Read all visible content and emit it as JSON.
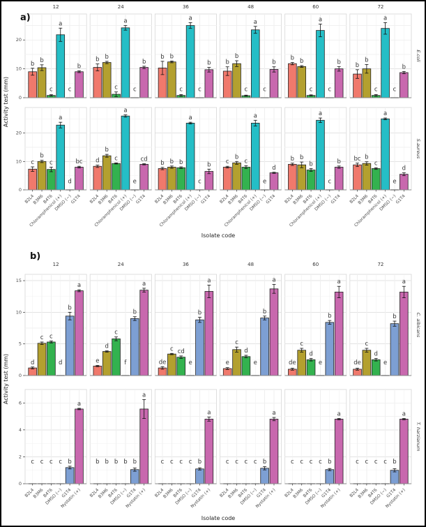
{
  "figure": {
    "panel_a_label": "a)",
    "panel_b_label": "b)"
  },
  "chart_data": [
    {
      "type": "bar",
      "panel": "a",
      "xlabel": "Isolate code",
      "ylabel": "Activity test (mm)",
      "legend": "none",
      "grid": "on",
      "col_facets": [
        "12",
        "24",
        "36",
        "48",
        "60",
        "72"
      ],
      "categories": [
        "B2L4",
        "B3M6",
        "B4T6",
        "Chloramphenicol (+)",
        "DMSO (−)",
        "G1T4"
      ],
      "bar_colors": [
        "#F0796C",
        "#B3A02F",
        "#33B24F",
        "#25BEC6",
        "#7D9FD3",
        "#C868AE"
      ],
      "rows": [
        {
          "facet_label": "E.coli",
          "ylim": [
            0,
            29
          ],
          "yticks": [
            0,
            10,
            20
          ],
          "facets": [
            {
              "col": "12",
              "values": [
                9.0,
                10.4,
                0.8,
                21.8,
                0,
                9.0
              ],
              "errors": [
                1.2,
                1.0,
                0.25,
                2.3,
                0,
                0.3
              ],
              "letters": [
                "b",
                "b",
                "c",
                "a",
                "c",
                "b"
              ]
            },
            {
              "col": "24",
              "values": [
                10.5,
                12.2,
                1.2,
                24.2,
                0,
                10.5
              ],
              "errors": [
                1.2,
                0.4,
                0.8,
                0.8,
                0,
                0.4
              ],
              "letters": [
                "b",
                "b",
                "c",
                "a",
                "c",
                "b"
              ]
            },
            {
              "col": "36",
              "values": [
                10.3,
                12.4,
                0.8,
                25.0,
                0,
                9.7
              ],
              "errors": [
                2.3,
                0.3,
                0.3,
                1.0,
                0,
                0.8
              ],
              "letters": [
                "b",
                "b",
                "c",
                "a",
                "c",
                "b"
              ]
            },
            {
              "col": "48",
              "values": [
                9.2,
                11.8,
                0.7,
                23.5,
                0,
                9.8
              ],
              "errors": [
                1.5,
                1.0,
                0.2,
                1.2,
                0,
                0.9
              ],
              "letters": [
                "b",
                "b",
                "c",
                "a",
                "c",
                "b"
              ]
            },
            {
              "col": "60",
              "values": [
                11.8,
                10.8,
                0.8,
                23.3,
                0,
                10.0
              ],
              "errors": [
                0.4,
                0.3,
                0.2,
                2.2,
                0,
                0.8
              ],
              "letters": [
                "b",
                "b",
                "c",
                "a",
                "c",
                "b"
              ]
            },
            {
              "col": "72",
              "values": [
                8.2,
                10.0,
                0.8,
                24.0,
                0,
                8.7
              ],
              "errors": [
                1.5,
                1.5,
                0.3,
                2.0,
                0,
                0.4
              ],
              "letters": [
                "b",
                "b",
                "c",
                "a",
                "c",
                "b"
              ]
            }
          ]
        },
        {
          "facet_label": "S.aureus",
          "ylim": [
            0,
            29
          ],
          "yticks": [
            0,
            10,
            20
          ],
          "facets": [
            {
              "col": "12",
              "values": [
                7.3,
                10.0,
                7.2,
                22.8,
                0,
                8.0
              ],
              "errors": [
                0.8,
                0.4,
                0.8,
                1.0,
                0,
                0.3
              ],
              "letters": [
                "c",
                "b",
                "c",
                "a",
                "d",
                "bc"
              ]
            },
            {
              "col": "24",
              "values": [
                8.3,
                12.0,
                9.3,
                26.0,
                0,
                9.0
              ],
              "errors": [
                0.4,
                0.5,
                0.2,
                0.4,
                0,
                0.2
              ],
              "letters": [
                "d",
                "b",
                "c",
                "a",
                "e",
                "cd"
              ]
            },
            {
              "col": "36",
              "values": [
                7.5,
                8.0,
                7.8,
                23.5,
                0,
                6.5
              ],
              "errors": [
                0.4,
                0.4,
                0.3,
                0.3,
                0,
                0.8
              ],
              "letters": [
                "b",
                "b",
                "b",
                "a",
                "c",
                "b"
              ]
            },
            {
              "col": "48",
              "values": [
                8.0,
                9.5,
                8.0,
                23.5,
                0,
                6.0
              ],
              "errors": [
                0.3,
                0.5,
                0.5,
                1.0,
                0,
                0.2
              ],
              "letters": [
                "c",
                "b",
                "c",
                "a",
                "e",
                "d"
              ]
            },
            {
              "col": "60",
              "values": [
                9.0,
                8.8,
                7.0,
                24.5,
                0,
                8.0
              ],
              "errors": [
                0.4,
                1.0,
                0.5,
                0.8,
                0,
                0.4
              ],
              "letters": [
                "b",
                "b",
                "b",
                "a",
                "c",
                "b"
              ]
            },
            {
              "col": "72",
              "values": [
                8.8,
                9.3,
                7.5,
                25.0,
                0,
                5.5
              ],
              "errors": [
                0.6,
                0.6,
                0.3,
                0.3,
                0,
                0.5
              ],
              "letters": [
                "bc",
                "b",
                "c",
                "a",
                "e",
                "d"
              ]
            }
          ]
        }
      ]
    },
    {
      "type": "bar",
      "panel": "b",
      "xlabel": "Isolate code",
      "ylabel": "Activity test (mm)",
      "legend": "none",
      "grid": "on",
      "col_facets": [
        "12",
        "24",
        "36",
        "48",
        "60",
        "72"
      ],
      "categories": [
        "B2L4",
        "B3M6",
        "B4T6",
        "DMSO (−)",
        "G1T4",
        "Nystatin (+)"
      ],
      "bar_colors": [
        "#F0796C",
        "#B3A02F",
        "#33B24F",
        "#25BEC6",
        "#7D9FD3",
        "#C868AE"
      ],
      "rows": [
        {
          "facet_label": "C. albicans",
          "ylim": [
            0,
            16
          ],
          "yticks": [
            0,
            5,
            10,
            15
          ],
          "facets": [
            {
              "col": "12",
              "values": [
                1.2,
                5.1,
                5.3,
                0,
                9.4,
                13.4
              ],
              "errors": [
                0.15,
                0.2,
                0.15,
                0,
                0.6,
                0.15
              ],
              "letters": [
                "d",
                "c",
                "c",
                "d",
                "b",
                "a"
              ]
            },
            {
              "col": "24",
              "values": [
                1.5,
                3.8,
                5.8,
                0,
                9.0,
                13.5
              ],
              "errors": [
                0.1,
                0.1,
                0.3,
                0,
                0.3,
                0.3
              ],
              "letters": [
                "e",
                "d",
                "c",
                "f",
                "b",
                "a"
              ]
            },
            {
              "col": "36",
              "values": [
                1.2,
                3.4,
                2.9,
                0,
                8.8,
                13.3
              ],
              "errors": [
                0.2,
                0.1,
                0.2,
                0,
                0.4,
                1.0
              ],
              "letters": [
                "de",
                "c",
                "cd",
                "e",
                "b",
                "a"
              ]
            },
            {
              "col": "48",
              "values": [
                1.1,
                4.1,
                3.0,
                0,
                9.1,
                13.7
              ],
              "errors": [
                0.15,
                0.4,
                0.2,
                0,
                0.3,
                0.7
              ],
              "letters": [
                "e",
                "c",
                "d",
                "e",
                "b",
                "a"
              ]
            },
            {
              "col": "60",
              "values": [
                1.0,
                4.0,
                2.5,
                0,
                8.4,
                13.2
              ],
              "errors": [
                0.15,
                0.3,
                0.2,
                0,
                0.3,
                0.9
              ],
              "letters": [
                "de",
                "c",
                "d",
                "e",
                "b",
                "a"
              ]
            },
            {
              "col": "72",
              "values": [
                1.0,
                4.0,
                2.5,
                0,
                8.2,
                13.2
              ],
              "errors": [
                0.15,
                0.3,
                0.2,
                0,
                0.4,
                0.9
              ],
              "letters": [
                "de",
                "c",
                "d",
                "e",
                "b",
                "a"
              ]
            }
          ]
        },
        {
          "facet_label": "T. harzianum",
          "ylim": [
            0,
            7
          ],
          "yticks": [
            0,
            2,
            4,
            6
          ],
          "facets": [
            {
              "col": "12",
              "values": [
                0,
                0,
                0,
                0,
                1.2,
                5.55
              ],
              "errors": [
                0,
                0,
                0,
                0,
                0.1,
                0.05
              ],
              "letters": [
                "c",
                "c",
                "c",
                "c",
                "b",
                "a"
              ]
            },
            {
              "col": "24",
              "values": [
                0,
                0,
                0,
                0,
                1.05,
                5.55
              ],
              "errors": [
                0,
                0,
                0,
                0,
                0.12,
                0.7
              ],
              "letters": [
                "b",
                "b",
                "b",
                "b",
                "b",
                "a"
              ]
            },
            {
              "col": "36",
              "values": [
                0,
                0,
                0,
                0,
                1.1,
                4.8
              ],
              "errors": [
                0,
                0,
                0,
                0,
                0.08,
                0.15
              ],
              "letters": [
                "c",
                "c",
                "c",
                "c",
                "b",
                "a"
              ]
            },
            {
              "col": "48",
              "values": [
                0,
                0,
                0,
                0,
                1.15,
                4.8
              ],
              "errors": [
                0,
                0,
                0,
                0,
                0.12,
                0.12
              ],
              "letters": [
                "c",
                "c",
                "c",
                "c",
                "b",
                "a"
              ]
            },
            {
              "col": "60",
              "values": [
                0,
                0,
                0,
                0,
                1.05,
                4.8
              ],
              "errors": [
                0,
                0,
                0,
                0,
                0.08,
                0.05
              ],
              "letters": [
                "c",
                "c",
                "c",
                "c",
                "b",
                "a"
              ]
            },
            {
              "col": "72",
              "values": [
                0,
                0,
                0,
                0,
                1.0,
                4.8
              ],
              "errors": [
                0,
                0,
                0,
                0,
                0.12,
                0.05
              ],
              "letters": [
                "c",
                "c",
                "c",
                "c",
                "b",
                "a"
              ]
            }
          ]
        }
      ]
    }
  ]
}
